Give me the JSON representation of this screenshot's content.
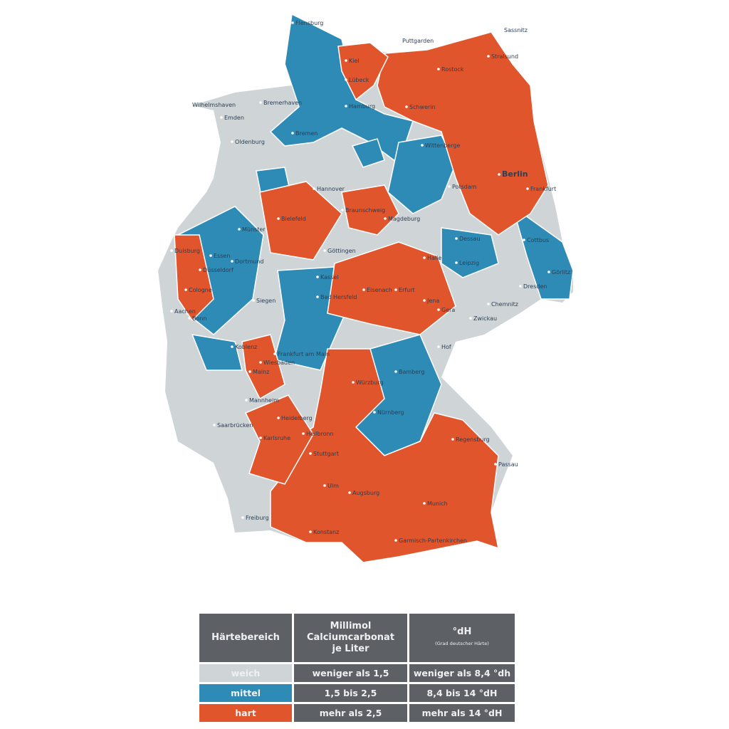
{
  "colors": {
    "weich": "#cfd4d7",
    "mittel": "#2e8bb5",
    "hart": "#e0552b",
    "table_bg": "#5d6064",
    "border": "#ffffff"
  },
  "cities": [
    "Flensburg",
    "Puttgarden",
    "Sassnitz",
    "Kiel",
    "Stralsund",
    "Rostock",
    "Lübeck",
    "Wilhelmshaven",
    "Bremerhaven",
    "Hamburg",
    "Schwerin",
    "Emden",
    "Bremen",
    "Oldenburg",
    "Wittenberge",
    "Berlin",
    "Potsdam",
    "Frankfurt",
    "Hannover",
    "Braunschweig",
    "Magdeburg",
    "Bielefeld",
    "Münster",
    "Cottbus",
    "Dessau",
    "Duisburg",
    "Dortmund",
    "Essen",
    "Göttingen",
    "Halle",
    "Leipzig",
    "Düsseldorf",
    "Görlitz",
    "Dresden",
    "Kassel",
    "Cologne",
    "Siegen",
    "Bad Hersfeld",
    "Eisenach",
    "Erfurt",
    "Jena",
    "Gera",
    "Chemnitz",
    "Aachen",
    "Bonn",
    "Zwickau",
    "Hof",
    "Koblenz",
    "Frankfurt am Main",
    "Wiesbaden",
    "Mainz",
    "Bamberg",
    "Würzburg",
    "Mannheim",
    "Heidelberg",
    "Nürnberg",
    "Saarbrücken",
    "Karlsruhe",
    "Heilbronn",
    "Regensburg",
    "Stuttgart",
    "Passau",
    "Ulm",
    "Augsburg",
    "Munich",
    "Freiburg",
    "Konstanz",
    "Garmisch-Partenkirchen"
  ],
  "legend": {
    "headers": [
      "Härtebereich",
      "Millimol Calciumcarbonat je Liter",
      "°dH"
    ],
    "header_sub": "(Grad deutscher Härte)",
    "rows": [
      {
        "label": "weich",
        "mmol": "weniger als 1,5",
        "dh": "weniger als 8,4 °dh"
      },
      {
        "label": "mittel",
        "mmol": "1,5 bis 2,5",
        "dh": "8,4 bis 14 °dH"
      },
      {
        "label": "hart",
        "mmol": "mehr als 2,5",
        "dh": "mehr als 14 °dH"
      }
    ]
  }
}
